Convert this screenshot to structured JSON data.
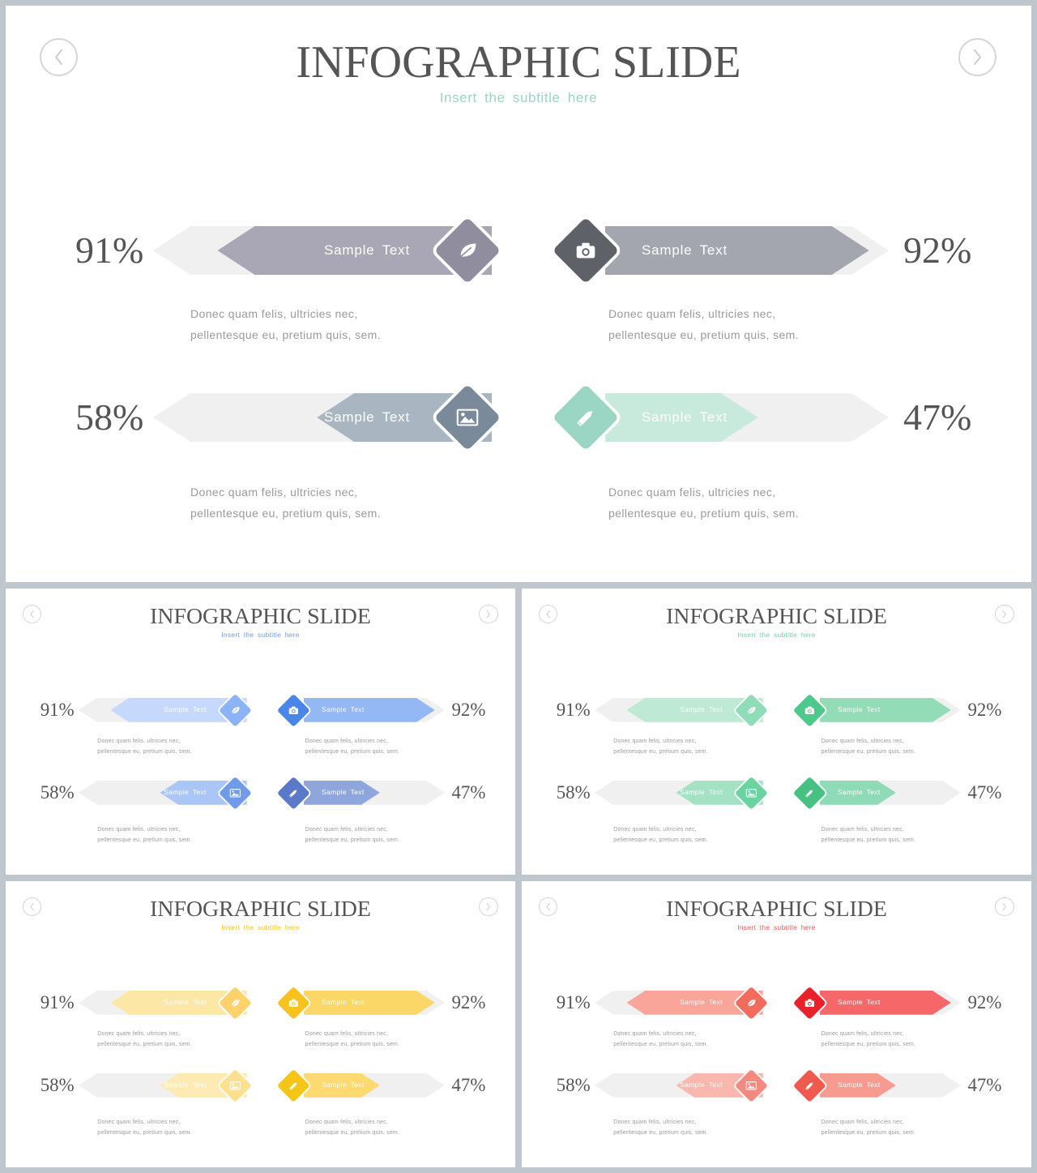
{
  "slides": [
    {
      "title": "INFOGRAPHIC SLIDE",
      "subtitle": "Insert the subtitle here",
      "palette": {
        "c1": "#908d9f",
        "c2": "#5f6168",
        "c3": "#7a8a9b",
        "c4": "#9bd5c3",
        "bar1": "#a9a7b5",
        "bar2": "#a3a6ae",
        "bar3": "#a9b6c2",
        "bar4": "#c7eadd",
        "sub": "#9bd5c3"
      },
      "items": [
        {
          "percent": "91%",
          "value": 0.91,
          "label": "Sample Text",
          "icon": "leaf-icon",
          "desc1": "Donec quam felis, ultricies nec,",
          "desc2": "pellentesque  eu, pretium  quis, sem."
        },
        {
          "percent": "92%",
          "value": 0.92,
          "label": "Sample Text",
          "icon": "camera-icon",
          "desc1": "Donec quam felis, ultricies nec,",
          "desc2": "pellentesque  eu, pretium  quis, sem."
        },
        {
          "percent": "58%",
          "value": 0.58,
          "label": "Sample Text",
          "icon": "image-icon",
          "desc1": "Donec quam felis, ultricies nec,",
          "desc2": "pellentesque  eu, pretium  quis, sem."
        },
        {
          "percent": "47%",
          "value": 0.47,
          "label": "Sample Text",
          "icon": "pencil-icon",
          "desc1": "Donec quam felis, ultricies nec,",
          "desc2": "pellentesque  eu, pretium  quis, sem."
        }
      ]
    },
    {
      "title": "INFOGRAPHIC SLIDE",
      "subtitle": "Insert the subtitle here",
      "palette": {
        "c1": "#8db3f7",
        "c2": "#4a86e8",
        "c3": "#6f9be9",
        "c4": "#5a79c9",
        "bar1": "#c6d8fb",
        "bar2": "#93b8f4",
        "bar3": "#a9c6f7",
        "bar4": "#8fa6dd",
        "sub": "#6f9be9"
      },
      "items": [
        {
          "percent": "91%",
          "value": 0.91,
          "label": "Sample Text",
          "icon": "leaf-icon",
          "desc1": "Donec quam felis, ultricies nec,",
          "desc2": "pellentesque  eu, pretium  quis, sem."
        },
        {
          "percent": "92%",
          "value": 0.92,
          "label": "Sample Text",
          "icon": "camera-icon",
          "desc1": "Donec quam felis, ultricies nec,",
          "desc2": "pellentesque  eu, pretium  quis, sem."
        },
        {
          "percent": "58%",
          "value": 0.58,
          "label": "Sample Text",
          "icon": "image-icon",
          "desc1": "Donec quam felis, ultricies nec,",
          "desc2": "pellentesque  eu, pretium  quis, sem."
        },
        {
          "percent": "47%",
          "value": 0.47,
          "label": "Sample Text",
          "icon": "pencil-icon",
          "desc1": "Donec quam felis, ultricies nec,",
          "desc2": "pellentesque  eu, pretium  quis, sem."
        }
      ]
    },
    {
      "title": "INFOGRAPHIC SLIDE",
      "subtitle": "Insert the subtitle here",
      "palette": {
        "c1": "#8fdcb9",
        "c2": "#4fc98b",
        "c3": "#6bd39f",
        "c4": "#47c181",
        "bar1": "#bde9d5",
        "bar2": "#93dcb8",
        "bar3": "#a4e2c4",
        "bar4": "#8fdbb7",
        "sub": "#6bd39f"
      },
      "items": [
        {
          "percent": "91%",
          "value": 0.91,
          "label": "Sample Text",
          "icon": "leaf-icon",
          "desc1": "Donec quam felis, ultricies nec,",
          "desc2": "pellentesque  eu, pretium  quis, sem."
        },
        {
          "percent": "92%",
          "value": 0.92,
          "label": "Sample Text",
          "icon": "camera-icon",
          "desc1": "Donec quam felis, ultricies nec,",
          "desc2": "pellentesque  eu, pretium  quis, sem."
        },
        {
          "percent": "58%",
          "value": 0.58,
          "label": "Sample Text",
          "icon": "image-icon",
          "desc1": "Donec quam felis, ultricies nec,",
          "desc2": "pellentesque  eu, pretium  quis, sem."
        },
        {
          "percent": "47%",
          "value": 0.47,
          "label": "Sample Text",
          "icon": "pencil-icon",
          "desc1": "Donec quam felis, ultricies nec,",
          "desc2": "pellentesque  eu, pretium  quis, sem."
        }
      ]
    },
    {
      "title": "INFOGRAPHIC SLIDE",
      "subtitle": "Insert the subtitle here",
      "palette": {
        "c1": "#fbd36a",
        "c2": "#f7c21c",
        "c3": "#fce08f",
        "c4": "#f5c518",
        "bar1": "#fde7a6",
        "bar2": "#fbd767",
        "bar3": "#feeab3",
        "bar4": "#fcd971",
        "sub": "#f5c518"
      },
      "items": [
        {
          "percent": "91%",
          "value": 0.91,
          "label": "Sample Text",
          "icon": "leaf-icon",
          "desc1": "Donec quam felis, ultricies nec,",
          "desc2": "pellentesque  eu, pretium  quis, sem."
        },
        {
          "percent": "92%",
          "value": 0.92,
          "label": "Sample Text",
          "icon": "camera-icon",
          "desc1": "Donec quam felis, ultricies nec,",
          "desc2": "pellentesque  eu, pretium  quis, sem."
        },
        {
          "percent": "58%",
          "value": 0.58,
          "label": "Sample Text",
          "icon": "image-icon",
          "desc1": "Donec quam felis, ultricies nec,",
          "desc2": "pellentesque  eu, pretium  quis, sem."
        },
        {
          "percent": "47%",
          "value": 0.47,
          "label": "Sample Text",
          "icon": "pencil-icon",
          "desc1": "Donec quam felis, ultricies nec,",
          "desc2": "pellentesque  eu, pretium  quis, sem."
        }
      ]
    },
    {
      "title": "INFOGRAPHIC SLIDE",
      "subtitle": "Insert the subtitle here",
      "palette": {
        "c1": "#f36b5c",
        "c2": "#e8212b",
        "c3": "#f48a7f",
        "c4": "#ee5a4e",
        "bar1": "#f9a59a",
        "bar2": "#f56769",
        "bar3": "#fab7ad",
        "bar4": "#f79b90",
        "sub": "#ee5a4e"
      },
      "items": [
        {
          "percent": "91%",
          "value": 0.91,
          "label": "Sample Text",
          "icon": "leaf-icon",
          "desc1": "Donec quam felis, ultricies nec,",
          "desc2": "pellentesque  eu, pretium  quis, sem."
        },
        {
          "percent": "92%",
          "value": 0.92,
          "label": "Sample Text",
          "icon": "camera-icon",
          "desc1": "Donec quam felis, ultricies nec,",
          "desc2": "pellentesque  eu, pretium  quis, sem."
        },
        {
          "percent": "58%",
          "value": 0.58,
          "label": "Sample Text",
          "icon": "image-icon",
          "desc1": "Donec quam felis, ultricies nec,",
          "desc2": "pellentesque  eu, pretium  quis, sem."
        },
        {
          "percent": "47%",
          "value": 0.47,
          "label": "Sample Text",
          "icon": "pencil-icon",
          "desc1": "Donec quam felis, ultricies nec,",
          "desc2": "pellentesque  eu, pretium  quis, sem."
        }
      ]
    }
  ]
}
